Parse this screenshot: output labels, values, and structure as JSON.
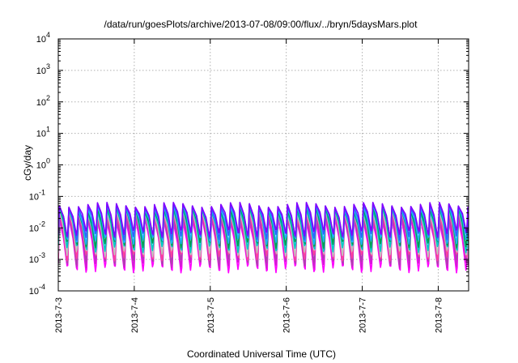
{
  "chart_data": {
    "type": "line",
    "title": "/data/run/goesPlots/archive/2013-07-08/09:00/flux/../bryn/5daysMars.plot",
    "xlabel": "Coordinated Universal Time (UTC)",
    "ylabel": "cGy/day",
    "yscale": "log",
    "ylim": [
      0.0001,
      10000
    ],
    "xlim": [
      0,
      5.4
    ],
    "grid": true,
    "x_ticks": [
      {
        "value": 0,
        "label": "2013-7-3"
      },
      {
        "value": 1,
        "label": "2013-7-4"
      },
      {
        "value": 2,
        "label": "2013-7-5"
      },
      {
        "value": 3,
        "label": "2013-7-6"
      },
      {
        "value": 4,
        "label": "2013-7-7"
      },
      {
        "value": 5,
        "label": "2013-7-8"
      }
    ],
    "y_ticks": [
      {
        "value": 0.0001,
        "base": "10",
        "exp": "-4"
      },
      {
        "value": 0.001,
        "base": "10",
        "exp": "-3"
      },
      {
        "value": 0.01,
        "base": "10",
        "exp": "-2"
      },
      {
        "value": 0.1,
        "base": "10",
        "exp": "-1"
      },
      {
        "value": 1,
        "base": "10",
        "exp": "0"
      },
      {
        "value": 10,
        "base": "10",
        "exp": "1"
      },
      {
        "value": 100,
        "base": "10",
        "exp": "2"
      },
      {
        "value": 1000,
        "base": "10",
        "exp": "3"
      },
      {
        "value": 10000,
        "base": "10",
        "exp": "4"
      }
    ],
    "oscillation_period_days": 0.125,
    "series": [
      {
        "color": "#ff00ff",
        "peak": 0.018,
        "trough": 0.0005
      },
      {
        "color": "#d020d0",
        "peak": 0.022,
        "trough": 0.0007
      },
      {
        "color": "#b040b0",
        "peak": 0.026,
        "trough": 0.0009
      },
      {
        "color": "#ff40a0",
        "peak": 0.03,
        "trough": 0.0012
      },
      {
        "color": "#c0c0c0",
        "peak": 0.034,
        "trough": 0.0016
      },
      {
        "color": "#00c8c8",
        "peak": 0.038,
        "trough": 0.0022
      },
      {
        "color": "#00a050",
        "peak": 0.042,
        "trough": 0.003
      },
      {
        "color": "#20b0ff",
        "peak": 0.046,
        "trough": 0.004
      },
      {
        "color": "#3060ff",
        "peak": 0.05,
        "trough": 0.0055
      },
      {
        "color": "#8000ff",
        "peak": 0.055,
        "trough": 0.007
      }
    ]
  }
}
